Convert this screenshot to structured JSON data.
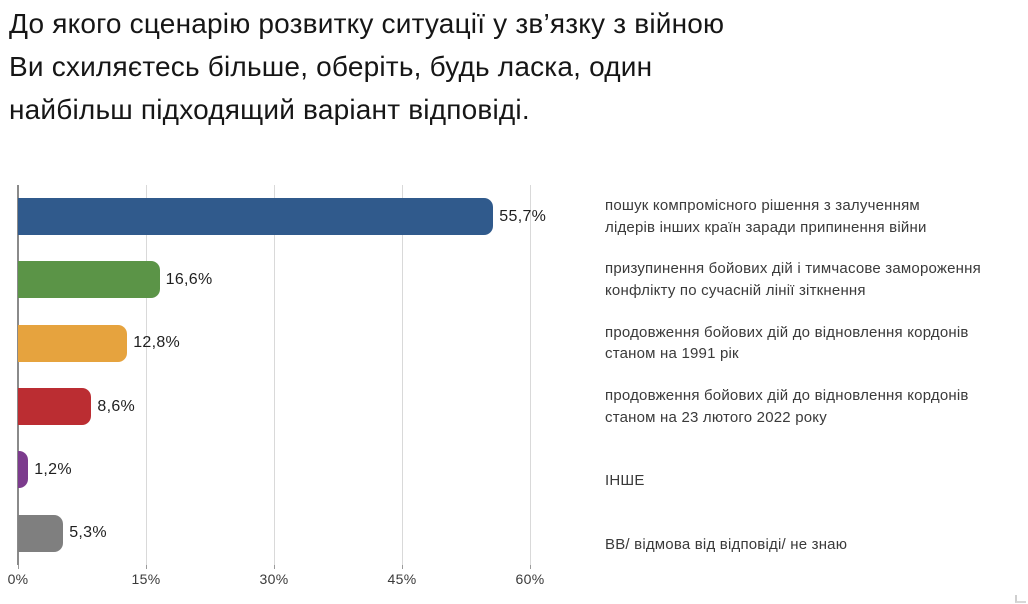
{
  "page": {
    "background": "#ffffff",
    "title_lines": [
      "До якого сценарію розвитку ситуації у зв’язку з війною",
      "Ви схиляєтесь більше, оберіть, будь ласка, один",
      "найбільш підходящий варіант відповіді."
    ]
  },
  "chart_data": {
    "type": "bar",
    "orientation": "horizontal",
    "title": "До якого сценарію розвитку ситуації у зв’язку з війною Ви схиляєтесь більше, оберіть, будь ласка, один найбільш підходящий варіант відповіді.",
    "categories": [
      "пошук компромісного рішення з залученням лідерів інших країн заради припинення війни",
      "призупинення бойових дій і тимчасове замороження конфлікту по сучасній лінії зіткнення",
      "продовження бойових дій до відновлення кордонів станом на 1991 рік",
      "продовження бойових дій до відновлення кордонів станом на 23 лютого 2022 року",
      "ІНШЕ",
      "ВВ/ відмова від відповіді/ не знаю"
    ],
    "values": [
      55.7,
      16.6,
      12.8,
      8.6,
      1.2,
      5.3
    ],
    "value_labels": [
      "55,7%",
      "16,6%",
      "12,8%",
      "8,6%",
      "1,2%",
      "5,3%"
    ],
    "bar_colors": [
      "#305a8c",
      "#5b9447",
      "#e6a33e",
      "#bb2d32",
      "#7c3b8d",
      "#7f7f7f"
    ],
    "x_ticks": [
      "0%",
      "15%",
      "30%",
      "45%",
      "60%"
    ],
    "x_tick_values": [
      0,
      15,
      30,
      45,
      60
    ],
    "xlim": [
      0,
      60
    ],
    "grid": "vertical-gridlines",
    "legend_position": "right",
    "legend_lines": [
      [
        "пошук компромісного рішення з залученням",
        "лідерів інших країн заради припинення війни"
      ],
      [
        "призупинення бойових дій і тимчасове замороження",
        "конфлікту по сучасній лінії зіткнення"
      ],
      [
        "продовження бойових дій до відновлення кордонів",
        "станом на 1991 рік"
      ],
      [
        "продовження бойових дій до відновлення кордонів",
        "станом на 23 лютого 2022 року"
      ],
      [
        "ІНШЕ"
      ],
      [
        "ВВ/ відмова від відповіді/ не знаю"
      ]
    ]
  }
}
